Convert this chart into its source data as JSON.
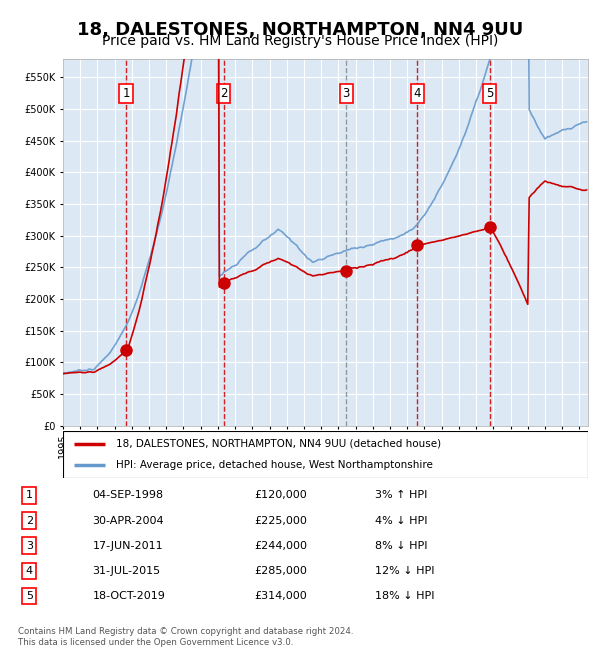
{
  "title": "18, DALESTONES, NORTHAMPTON, NN4 9UU",
  "subtitle": "Price paid vs. HM Land Registry's House Price Index (HPI)",
  "title_fontsize": 13,
  "subtitle_fontsize": 10,
  "legend_label_red": "18, DALESTONES, NORTHAMPTON, NN4 9UU (detached house)",
  "legend_label_blue": "HPI: Average price, detached house, West Northamptonshire",
  "footer": "Contains HM Land Registry data © Crown copyright and database right 2024.\nThis data is licensed under the Open Government Licence v3.0.",
  "transactions": [
    {
      "num": 1,
      "date": "04-SEP-1998",
      "price": 120000,
      "pct": "3%",
      "dir": "↑",
      "year_x": 1998.67
    },
    {
      "num": 2,
      "date": "30-APR-2004",
      "price": 225000,
      "pct": "4%",
      "dir": "↓",
      "year_x": 2004.33
    },
    {
      "num": 3,
      "date": "17-JUN-2011",
      "price": 244000,
      "pct": "8%",
      "dir": "↓",
      "year_x": 2011.46
    },
    {
      "num": 4,
      "date": "31-JUL-2015",
      "price": 285000,
      "pct": "12%",
      "dir": "↓",
      "year_x": 2015.58
    },
    {
      "num": 5,
      "date": "18-OCT-2019",
      "price": 314000,
      "pct": "18%",
      "dir": "↓",
      "year_x": 2019.79
    }
  ],
  "xlim": [
    1995,
    2025.5
  ],
  "ylim": [
    0,
    580000
  ],
  "yticks": [
    0,
    50000,
    100000,
    150000,
    200000,
    250000,
    300000,
    350000,
    400000,
    450000,
    500000,
    550000
  ],
  "background_color": "#dce9f5",
  "grid_color": "#ffffff",
  "red_line_color": "#cc0000",
  "blue_line_color": "#6699cc",
  "dashed_line_color": "#cc0000",
  "marker_color": "#cc0000"
}
